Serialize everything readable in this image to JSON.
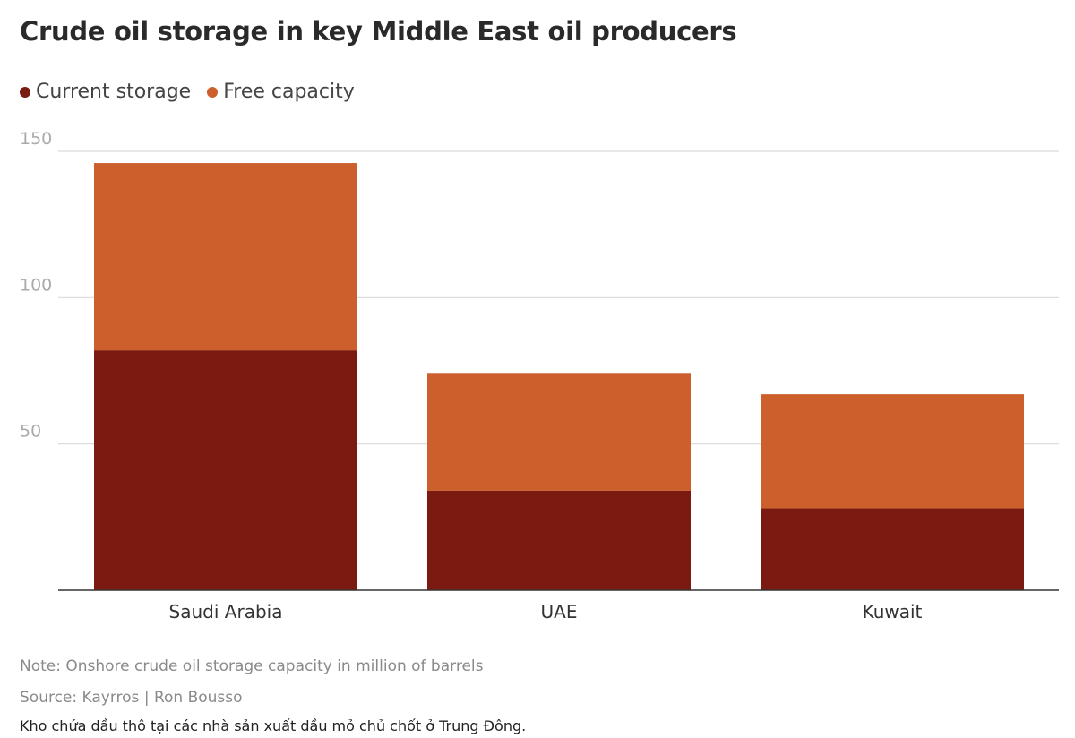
{
  "title": "Crude oil storage in key Middle East oil producers",
  "legend": [
    {
      "label": "Current storage",
      "color": "#7a1a10"
    },
    {
      "label": "Free capacity",
      "color": "#cc5f2c"
    }
  ],
  "note": "Note: Onshore crude oil storage capacity in million of barrels",
  "source": "Source: Kayrros | Ron Bousso",
  "caption": "Kho chứa dầu thô tại các nhà sản xuất dầu mỏ chủ chốt ở Trung Đông.",
  "chart_data": {
    "type": "bar",
    "stacked": true,
    "categories": [
      "Saudi Arabia",
      "UAE",
      "Kuwait"
    ],
    "series": [
      {
        "name": "Current storage",
        "values": [
          82,
          34,
          28
        ],
        "color": "#7a1a10"
      },
      {
        "name": "Free capacity",
        "values": [
          64,
          40,
          39
        ],
        "color": "#cc5f2c"
      }
    ],
    "yticks": [
      50,
      100,
      150
    ],
    "ylim": [
      0,
      150
    ],
    "grid": true,
    "legend_position": "top-left"
  }
}
